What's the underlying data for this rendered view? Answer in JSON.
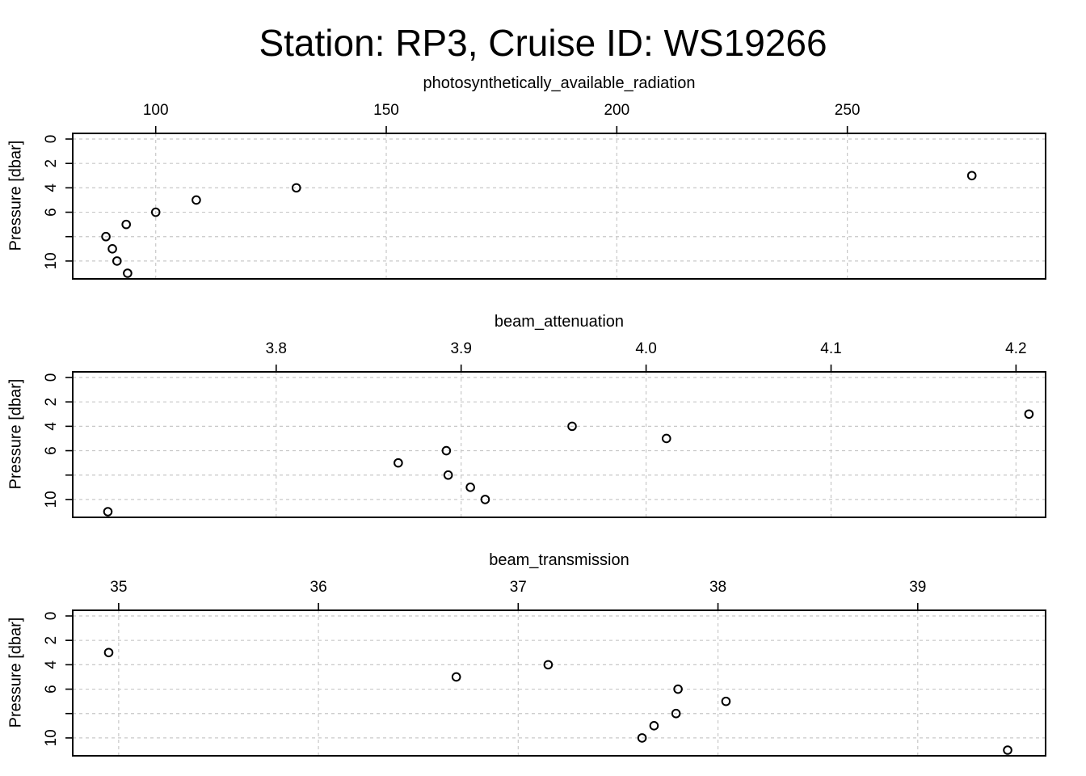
{
  "title": "Station: RP3, Cruise ID: WS19266",
  "ylabel": "Pressure [dbar]",
  "chart_data": [
    {
      "type": "scatter",
      "title": "photosynthetically_available_radiation",
      "xlabel": "photosynthetically_available_radiation",
      "ylabel": "Pressure [dbar]",
      "x_axis_position": "top",
      "y_reversed": true,
      "grid": true,
      "xlim": [
        82,
        293
      ],
      "ylim": [
        0,
        11
      ],
      "xticks": [
        100,
        150,
        200,
        250
      ],
      "xtick_labels": [
        "100",
        "150",
        "200",
        "250"
      ],
      "yticks": [
        0,
        2,
        4,
        6,
        8,
        10
      ],
      "ytick_labels": [
        "0",
        "2",
        "4",
        "6",
        "",
        "10"
      ],
      "series": [
        {
          "x": [
            277.0,
            130.5,
            108.8,
            100.0,
            93.6,
            89.2,
            90.6,
            91.6,
            93.9
          ],
          "y": [
            3,
            4,
            5,
            6,
            7,
            8,
            9,
            10,
            11
          ]
        }
      ]
    },
    {
      "type": "scatter",
      "title": "beam_attenuation",
      "xlabel": "beam_attenuation",
      "ylabel": "Pressure [dbar]",
      "x_axis_position": "top",
      "y_reversed": true,
      "grid": true,
      "xlim": [
        3.69,
        4.216
      ],
      "ylim": [
        0,
        11
      ],
      "xticks": [
        3.8,
        3.9,
        4.0,
        4.1,
        4.2
      ],
      "xtick_labels": [
        "3.8",
        "3.9",
        "4.0",
        "4.1",
        "4.2"
      ],
      "yticks": [
        0,
        2,
        4,
        6,
        8,
        10
      ],
      "ytick_labels": [
        "0",
        "2",
        "4",
        "6",
        "",
        "10"
      ],
      "series": [
        {
          "x": [
            4.207,
            3.96,
            4.011,
            3.892,
            3.866,
            3.893,
            3.905,
            3.913,
            3.709
          ],
          "y": [
            3,
            4,
            5,
            6,
            7,
            8,
            9,
            10,
            11
          ]
        }
      ]
    },
    {
      "type": "scatter",
      "title": "beam_transmission",
      "xlabel": "beam_transmission",
      "ylabel": "Pressure [dbar]",
      "x_axis_position": "top",
      "y_reversed": true,
      "grid": true,
      "xlim": [
        34.77,
        39.64
      ],
      "ylim": [
        0,
        11
      ],
      "xticks": [
        35,
        36,
        37,
        38,
        39
      ],
      "xtick_labels": [
        "35",
        "36",
        "37",
        "38",
        "39"
      ],
      "yticks": [
        0,
        2,
        4,
        6,
        8,
        10
      ],
      "ytick_labels": [
        "0",
        "2",
        "4",
        "6",
        "",
        "10"
      ],
      "series": [
        {
          "x": [
            34.95,
            37.15,
            36.69,
            37.8,
            38.04,
            37.79,
            37.68,
            37.62,
            39.45
          ],
          "y": [
            3,
            4,
            5,
            6,
            7,
            8,
            9,
            10,
            11
          ]
        }
      ]
    }
  ]
}
